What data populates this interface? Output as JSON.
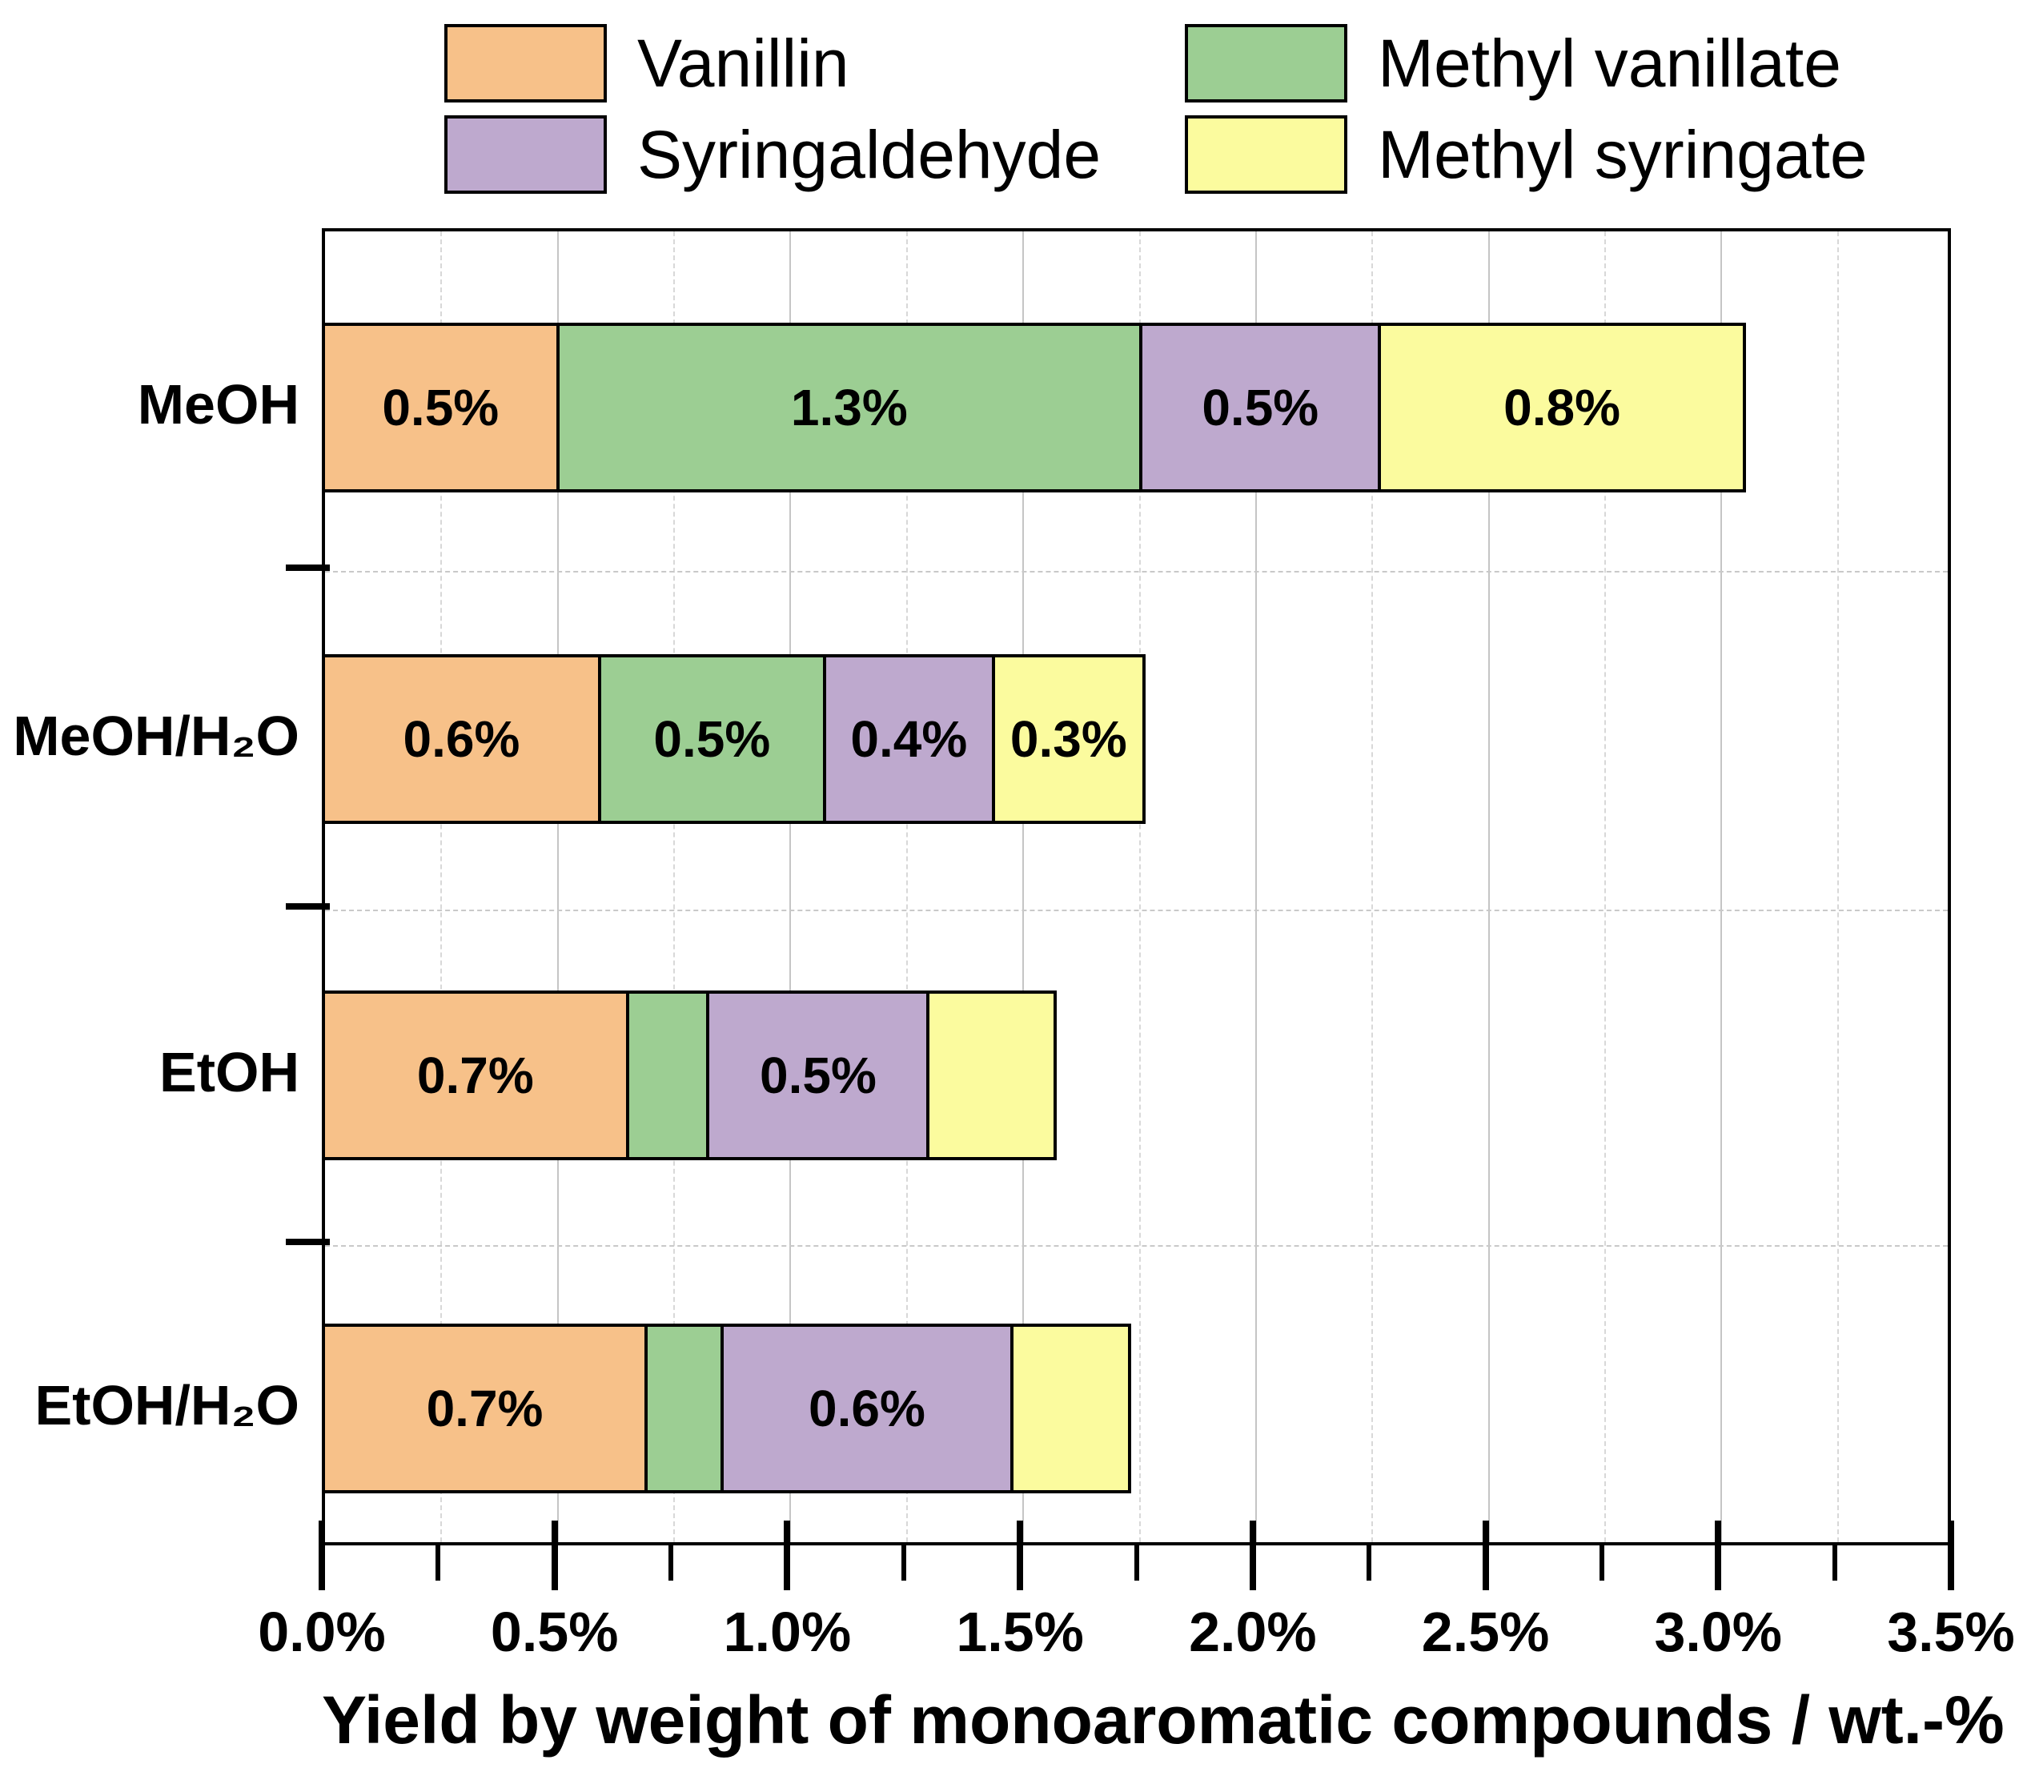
{
  "chart_data": {
    "type": "bar",
    "orientation": "horizontal",
    "stacked": true,
    "title": "",
    "xlabel": "Yield by weight of monoaromatic compounds / wt.-%",
    "ylabel": "",
    "xlim": [
      0,
      3.5
    ],
    "x_major_step": 0.5,
    "x_minor_step": 0.25,
    "x_tick_labels": [
      "0.0%",
      "0.5%",
      "1.0%",
      "1.5%",
      "2.0%",
      "2.5%",
      "3.0%",
      "3.5%"
    ],
    "grid": "vertical solid major + dashed minor gridlines; dashed horizontal separators between categories",
    "legend_position": "top",
    "categories": [
      "MeOH",
      "MeOH/H₂O",
      "EtOH",
      "EtOH/H₂O"
    ],
    "series": [
      {
        "name": "Vanillin",
        "color": "#F7C189",
        "values": [
          0.51,
          0.6,
          0.66,
          0.7
        ],
        "labels": [
          "0.5%",
          "0.6%",
          "0.7%",
          "0.7%"
        ]
      },
      {
        "name": "Methyl vanillate",
        "color": "#9CCE93",
        "values": [
          1.26,
          0.49,
          0.18,
          0.17
        ],
        "labels": [
          "1.3%",
          "0.5%",
          "",
          ""
        ]
      },
      {
        "name": "Syringaldehyde",
        "color": "#BEA9CE",
        "values": [
          0.52,
          0.37,
          0.48,
          0.63
        ],
        "labels": [
          "0.5%",
          "0.4%",
          "0.5%",
          "0.6%"
        ]
      },
      {
        "name": "Methyl syringate",
        "color": "#FBFB9E",
        "values": [
          0.79,
          0.33,
          0.28,
          0.26
        ],
        "labels": [
          "0.8%",
          "0.3%",
          "",
          ""
        ]
      }
    ],
    "stack_totals": [
      3.08,
      1.79,
      1.6,
      1.76
    ],
    "colors": {
      "axis": "#000000",
      "grid_major": "#c5c5c5",
      "grid_minor": "#d8d8d8",
      "separator": "#c9c9c9"
    }
  }
}
